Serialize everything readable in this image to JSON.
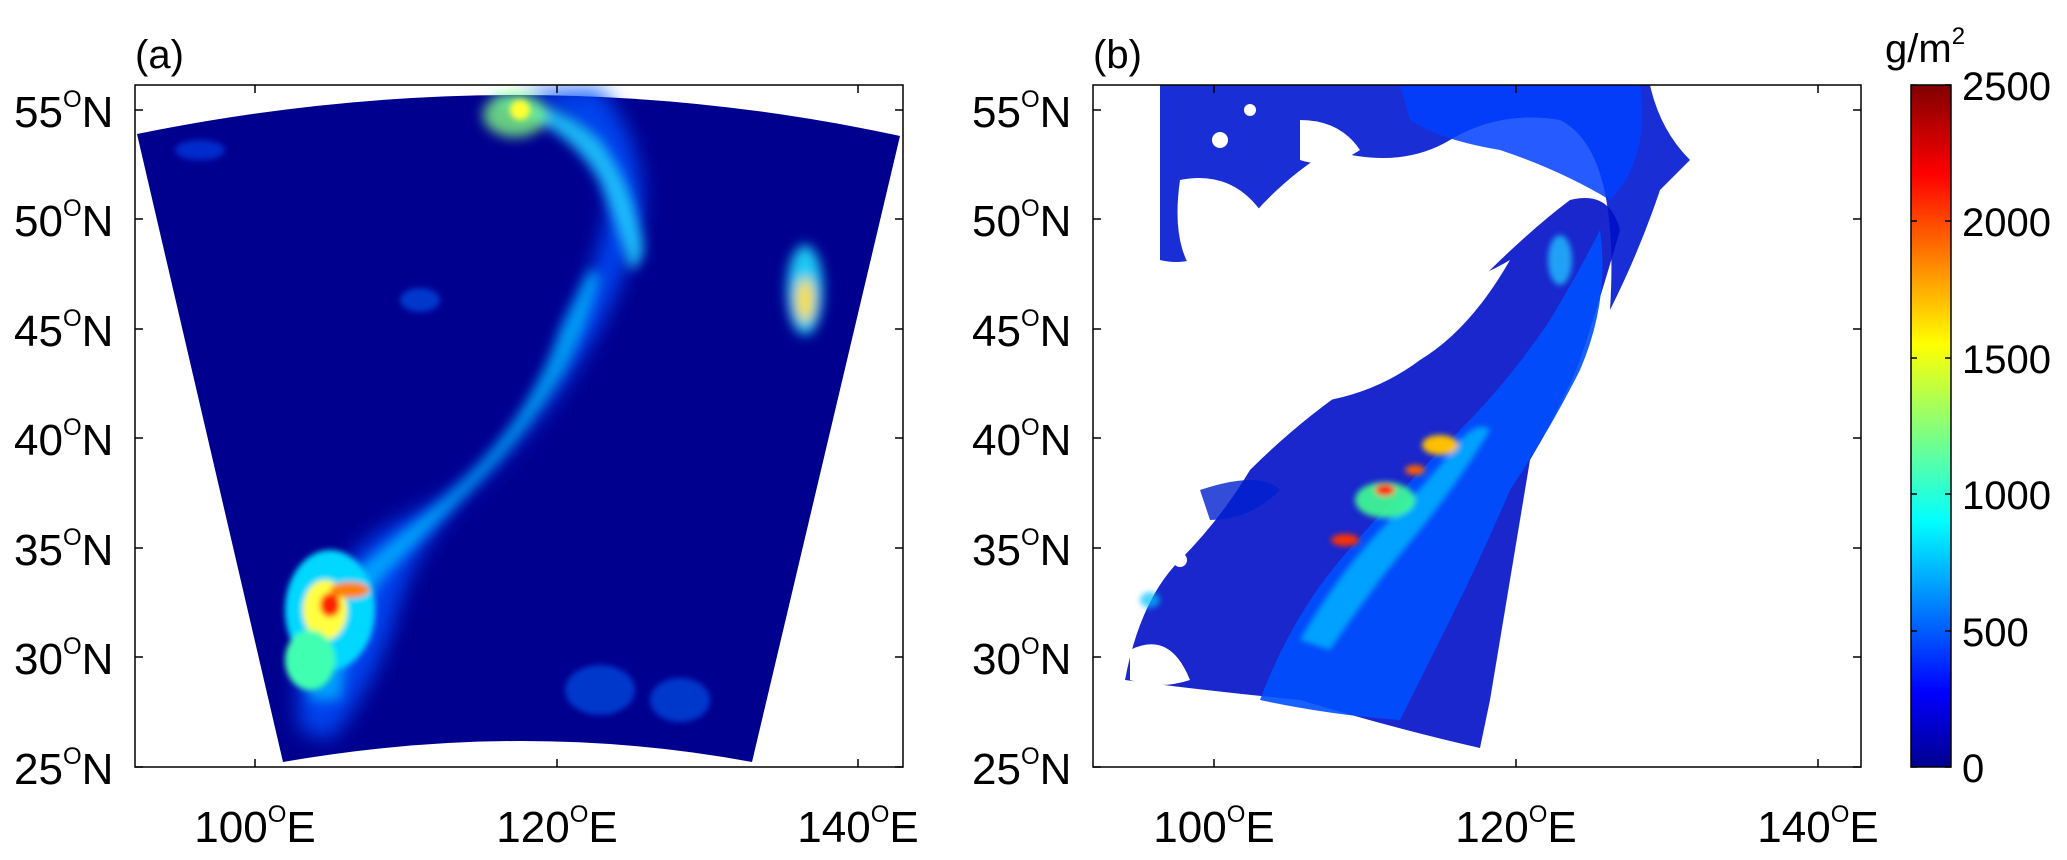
{
  "panels": [
    {
      "label": "(a)"
    },
    {
      "label": "(b)"
    }
  ],
  "axes": {
    "lat_ticks": [
      {
        "deg": "25",
        "sup": "O",
        "hem": "N"
      },
      {
        "deg": "30",
        "sup": "O",
        "hem": "N"
      },
      {
        "deg": "35",
        "sup": "O",
        "hem": "N"
      },
      {
        "deg": "40",
        "sup": "O",
        "hem": "N"
      },
      {
        "deg": "45",
        "sup": "O",
        "hem": "N"
      },
      {
        "deg": "50",
        "sup": "O",
        "hem": "N"
      },
      {
        "deg": "55",
        "sup": "O",
        "hem": "N"
      }
    ],
    "lon_ticks": [
      {
        "deg": "100",
        "sup": "O",
        "hem": "E"
      },
      {
        "deg": "120",
        "sup": "O",
        "hem": "E"
      },
      {
        "deg": "140",
        "sup": "O",
        "hem": "E"
      }
    ]
  },
  "colorbar": {
    "unit_base": "g/m",
    "unit_sup": "2",
    "ticks": [
      "0",
      "500",
      "1000",
      "1500",
      "2000",
      "2500"
    ],
    "range": [
      0,
      2500
    ],
    "colormap": "jet"
  },
  "colors": {
    "background_a": "#00008f",
    "jet_stops": [
      "#00008f",
      "#0000ff",
      "#00ffff",
      "#ffff00",
      "#ff0000",
      "#800000"
    ]
  }
}
